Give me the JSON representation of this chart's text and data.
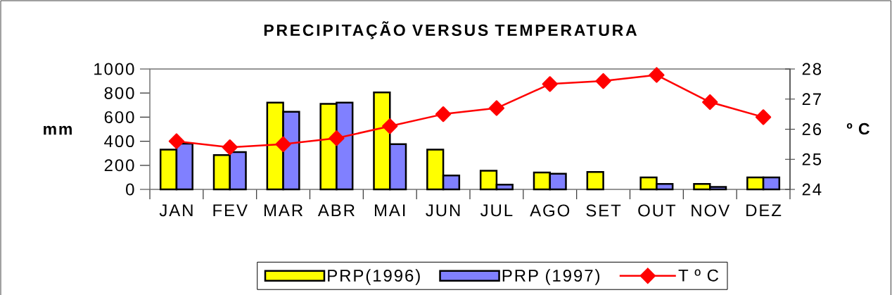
{
  "chart_data": {
    "type": "bar",
    "title": "PRECIPITAÇÃO VERSUS TEMPERATURA",
    "ylabel": "mm",
    "y2label": "º C",
    "categories": [
      "JAN",
      "FEV",
      "MAR",
      "ABR",
      "MAI",
      "JUN",
      "JUL",
      "AGO",
      "SET",
      "OUT",
      "NOV",
      "DEZ"
    ],
    "series": [
      {
        "name": "PRP(1996)",
        "color": "#ffff00",
        "values": [
          330,
          285,
          720,
          710,
          805,
          330,
          155,
          140,
          145,
          100,
          45,
          100
        ]
      },
      {
        "name": "PRP (1997)",
        "color": "#8080ff",
        "values": [
          380,
          310,
          645,
          720,
          375,
          115,
          40,
          130,
          null,
          45,
          20,
          100
        ]
      },
      {
        "name": "T º C",
        "type": "line",
        "axis": "y2",
        "color": "#ff0000",
        "marker": "diamond",
        "values": [
          25.6,
          25.4,
          25.5,
          25.7,
          26.1,
          26.5,
          26.7,
          27.5,
          27.6,
          27.8,
          26.9,
          26.4
        ]
      }
    ],
    "ylim": [
      0,
      1000
    ],
    "yticks": [
      0,
      200,
      400,
      600,
      800,
      1000
    ],
    "y2lim": [
      24,
      28
    ],
    "y2ticks": [
      24,
      25,
      26,
      27,
      28
    ],
    "grid": false,
    "legend": "bottom"
  }
}
